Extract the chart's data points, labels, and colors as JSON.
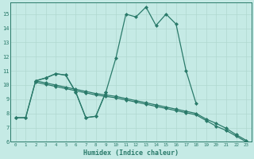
{
  "xlabel": "Humidex (Indice chaleur)",
  "xlim": [
    -0.5,
    23.5
  ],
  "ylim": [
    6,
    15.8
  ],
  "yticks": [
    6,
    7,
    8,
    9,
    10,
    11,
    12,
    13,
    14,
    15
  ],
  "xticks": [
    0,
    1,
    2,
    3,
    4,
    5,
    6,
    7,
    8,
    9,
    10,
    11,
    12,
    13,
    14,
    15,
    16,
    17,
    18,
    19,
    20,
    21,
    22,
    23
  ],
  "bg_color": "#c5eae5",
  "grid_color": "#b0d8d0",
  "line_color": "#2a7a6a",
  "line_width": 0.9,
  "marker": "D",
  "marker_size": 2.0,
  "curves": [
    {
      "x": [
        0,
        1,
        2,
        3,
        4,
        5,
        6,
        7,
        8,
        9,
        10,
        11,
        12,
        13,
        14,
        15,
        16,
        17,
        18
      ],
      "y": [
        7.7,
        7.7,
        10.3,
        10.5,
        10.8,
        10.7,
        9.5,
        7.7,
        7.8,
        9.5,
        11.9,
        15.0,
        14.8,
        15.5,
        14.2,
        15.0,
        14.3,
        11.0,
        8.7
      ]
    },
    {
      "x": [
        0,
        1,
        2,
        3,
        4,
        5,
        6,
        7,
        8,
        9
      ],
      "y": [
        7.7,
        7.7,
        10.3,
        10.5,
        10.8,
        10.7,
        9.5,
        7.7,
        7.8,
        9.5
      ]
    },
    {
      "x": [
        2,
        3,
        4,
        5,
        6,
        7,
        8,
        9,
        10,
        11,
        12,
        13,
        14,
        15,
        16,
        17,
        18,
        19,
        20,
        21,
        22,
        23
      ],
      "y": [
        10.3,
        10.15,
        10.0,
        9.85,
        9.7,
        9.55,
        9.4,
        9.3,
        9.2,
        9.05,
        8.9,
        8.75,
        8.6,
        8.45,
        8.3,
        8.15,
        8.0,
        7.6,
        7.3,
        6.95,
        6.5,
        6.1
      ]
    },
    {
      "x": [
        2,
        3,
        4,
        5,
        6,
        7,
        8,
        9,
        10,
        11,
        12,
        13,
        14,
        15,
        16,
        17,
        18,
        19,
        20,
        21,
        22,
        23
      ],
      "y": [
        10.2,
        10.05,
        9.9,
        9.75,
        9.6,
        9.45,
        9.3,
        9.2,
        9.1,
        8.95,
        8.8,
        8.65,
        8.5,
        8.35,
        8.2,
        8.05,
        7.9,
        7.5,
        7.1,
        6.8,
        6.4,
        6.0
      ]
    }
  ]
}
